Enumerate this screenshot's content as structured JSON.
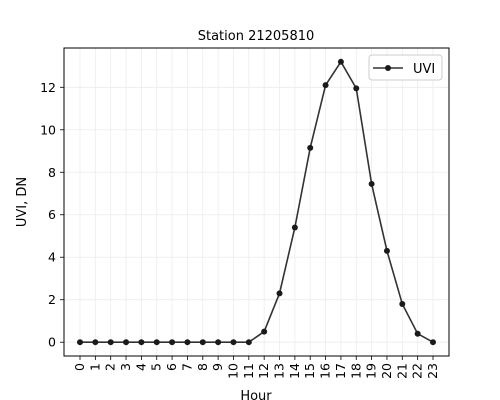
{
  "chart_data": {
    "type": "line",
    "title": "Station 21205810",
    "xlabel": "Hour",
    "ylabel": "UVI, DN",
    "categories": [
      "0",
      "1",
      "2",
      "3",
      "4",
      "5",
      "6",
      "7",
      "8",
      "9",
      "10",
      "11",
      "12",
      "13",
      "14",
      "15",
      "16",
      "17",
      "18",
      "19",
      "20",
      "21",
      "22",
      "23"
    ],
    "series": [
      {
        "name": "UVI",
        "color": "#333333",
        "values": [
          0,
          0,
          0,
          0,
          0,
          0,
          0,
          0,
          0,
          0,
          0,
          0,
          0.5,
          2.3,
          5.4,
          9.15,
          12.1,
          13.2,
          11.95,
          7.45,
          4.3,
          1.8,
          0.4,
          0
        ]
      }
    ],
    "ylim": [
      -0.65,
      13.85
    ],
    "yticks": [
      0,
      2,
      4,
      6,
      8,
      10,
      12
    ],
    "grid": true,
    "legend_position": "top-right"
  }
}
